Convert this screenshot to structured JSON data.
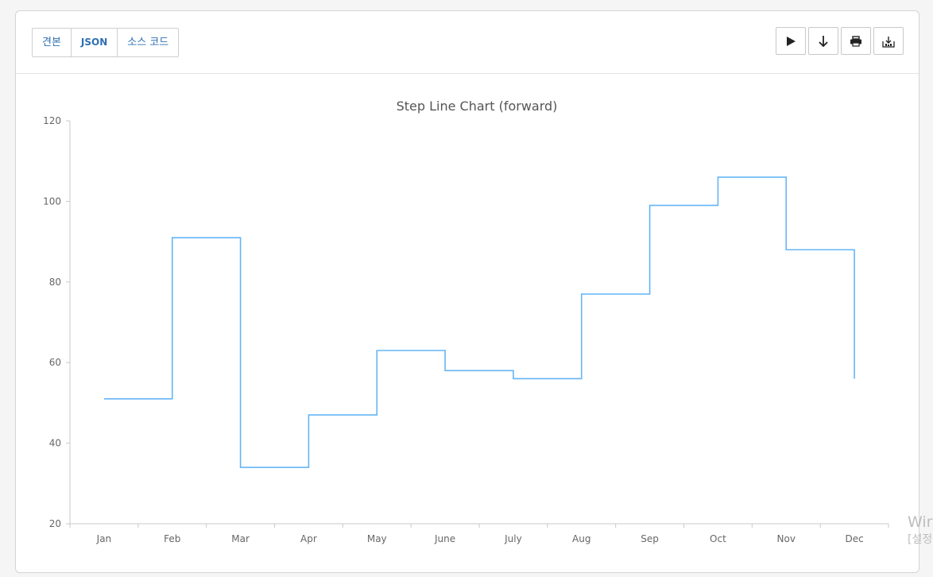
{
  "tabs": [
    {
      "label": "견본"
    },
    {
      "label": "JSON"
    },
    {
      "label": "소스 코드"
    }
  ],
  "toolbar": {
    "icons": [
      "play-icon",
      "arrow-down-icon",
      "print-icon",
      "export-icon"
    ]
  },
  "chart_data": {
    "type": "line",
    "step": "forward",
    "title": "Step Line Chart (forward)",
    "categories": [
      "Jan",
      "Feb",
      "Mar",
      "Apr",
      "May",
      "June",
      "July",
      "Aug",
      "Sep",
      "Oct",
      "Nov",
      "Dec"
    ],
    "series": [
      {
        "values": [
          51,
          91,
          34,
          47,
          63,
          58,
          56,
          77,
          99,
          106,
          88,
          56
        ],
        "color": "#64b5f6"
      }
    ],
    "ylim": [
      20,
      120
    ],
    "yticks": [
      20,
      40,
      60,
      80,
      100,
      120
    ],
    "grid": false,
    "legend": "none"
  },
  "watermark": {
    "line1": "Wir",
    "line2": "[설정"
  }
}
